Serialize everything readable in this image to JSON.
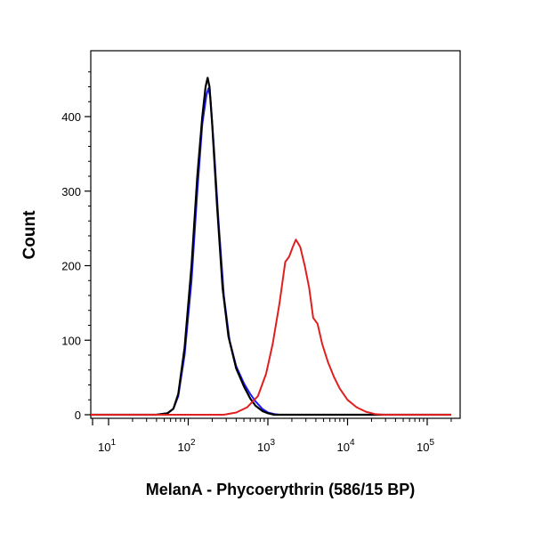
{
  "chart_data": {
    "type": "line",
    "xlabel": "MelanA - Phycoerythrin (586/15 BP)",
    "ylabel": "Count",
    "x_scale": "log",
    "xlim": [
      0,
      200000
    ],
    "ylim": [
      0,
      480
    ],
    "x_ticks": [
      {
        "value": 10,
        "base": "10",
        "exp": "1"
      },
      {
        "value": 100,
        "base": "10",
        "exp": "2"
      },
      {
        "value": 1000,
        "base": "10",
        "exp": "3"
      },
      {
        "value": 10000,
        "base": "10",
        "exp": "4"
      },
      {
        "value": 100000,
        "base": "10",
        "exp": "5"
      }
    ],
    "y_ticks": [
      {
        "value": 0,
        "label": "0"
      },
      {
        "value": 100,
        "label": "100"
      },
      {
        "value": 200,
        "label": "200"
      },
      {
        "value": 300,
        "label": "300"
      },
      {
        "value": 400,
        "label": "400"
      }
    ],
    "grid": false,
    "series": [
      {
        "color": "#1a1aff",
        "points": [
          [
            0,
            0
          ],
          [
            25,
            0
          ],
          [
            40,
            0
          ],
          [
            55,
            2
          ],
          [
            65,
            8
          ],
          [
            75,
            25
          ],
          [
            90,
            80
          ],
          [
            110,
            180
          ],
          [
            130,
            300
          ],
          [
            150,
            390
          ],
          [
            170,
            430
          ],
          [
            180,
            438
          ],
          [
            190,
            425
          ],
          [
            210,
            360
          ],
          [
            240,
            260
          ],
          [
            280,
            160
          ],
          [
            330,
            100
          ],
          [
            400,
            65
          ],
          [
            500,
            42
          ],
          [
            600,
            28
          ],
          [
            700,
            18
          ],
          [
            850,
            8
          ],
          [
            1000,
            3
          ],
          [
            1200,
            1
          ],
          [
            1400,
            0
          ],
          [
            200000,
            0
          ]
        ]
      },
      {
        "color": "#000000",
        "points": [
          [
            0,
            0
          ],
          [
            25,
            0
          ],
          [
            40,
            0
          ],
          [
            55,
            2
          ],
          [
            65,
            8
          ],
          [
            75,
            28
          ],
          [
            90,
            90
          ],
          [
            110,
            200
          ],
          [
            130,
            320
          ],
          [
            150,
            400
          ],
          [
            165,
            440
          ],
          [
            175,
            452
          ],
          [
            185,
            440
          ],
          [
            200,
            390
          ],
          [
            230,
            280
          ],
          [
            270,
            170
          ],
          [
            320,
            105
          ],
          [
            400,
            62
          ],
          [
            500,
            38
          ],
          [
            600,
            22
          ],
          [
            700,
            12
          ],
          [
            850,
            5
          ],
          [
            1000,
            2
          ],
          [
            1200,
            0
          ],
          [
            200000,
            0
          ]
        ]
      },
      {
        "color": "#e02020",
        "points": [
          [
            0,
            0
          ],
          [
            200,
            0
          ],
          [
            280,
            0
          ],
          [
            400,
            3
          ],
          [
            550,
            10
          ],
          [
            750,
            25
          ],
          [
            950,
            55
          ],
          [
            1150,
            95
          ],
          [
            1400,
            150
          ],
          [
            1650,
            205
          ],
          [
            1850,
            212
          ],
          [
            2050,
            225
          ],
          [
            2250,
            235
          ],
          [
            2550,
            225
          ],
          [
            2900,
            200
          ],
          [
            3300,
            170
          ],
          [
            3700,
            130
          ],
          [
            4200,
            122
          ],
          [
            4800,
            95
          ],
          [
            5700,
            70
          ],
          [
            6800,
            50
          ],
          [
            8000,
            35
          ],
          [
            10000,
            20
          ],
          [
            13000,
            10
          ],
          [
            17000,
            4
          ],
          [
            22000,
            1
          ],
          [
            28000,
            0
          ],
          [
            200000,
            0
          ]
        ]
      }
    ]
  }
}
